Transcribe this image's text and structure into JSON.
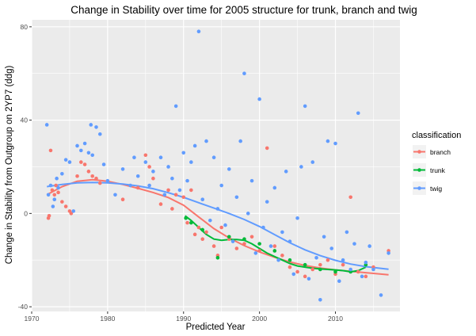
{
  "chart_data": {
    "type": "scatter",
    "title": "Change in Stability over time for 2005 structure for trunk, branch and twig",
    "xlabel": "Predicted Year",
    "ylabel": "Change in Stability from Outgroup on 2YP7 (ddg)",
    "xlim": [
      1970,
      2018.5
    ],
    "ylim": [
      -42,
      83
    ],
    "x_ticks": [
      1970,
      1980,
      1990,
      2000,
      2010
    ],
    "y_ticks": [
      -40,
      0,
      40,
      80
    ],
    "x_tick_labels": [
      "1970",
      "1980",
      "1990",
      "2000",
      "2010"
    ],
    "y_tick_labels": [
      "-40",
      "0",
      "40",
      "80"
    ],
    "grid": true,
    "background": "#ebebeb",
    "legend": {
      "title": "classification",
      "position": "right",
      "entries": [
        "branch",
        "trunk",
        "twig"
      ]
    },
    "series": [
      {
        "name": "branch",
        "color": "#f8766d",
        "points": [
          [
            1972.2,
            -2
          ],
          [
            1972.3,
            -1
          ],
          [
            1972.5,
            27
          ],
          [
            1972.7,
            10
          ],
          [
            1973.0,
            8
          ],
          [
            1973.2,
            12
          ],
          [
            1973.5,
            9
          ],
          [
            1974.0,
            5
          ],
          [
            1974.5,
            3
          ],
          [
            1975.0,
            1
          ],
          [
            1975.2,
            0
          ],
          [
            1976.0,
            16
          ],
          [
            1976.5,
            22
          ],
          [
            1977.0,
            21
          ],
          [
            1977.5,
            18
          ],
          [
            1978.0,
            16
          ],
          [
            1978.5,
            15
          ],
          [
            1979.0,
            13
          ],
          [
            1982.0,
            6
          ],
          [
            1984.0,
            11
          ],
          [
            1985.0,
            25
          ],
          [
            1985.5,
            20
          ],
          [
            1986.0,
            15
          ],
          [
            1987.0,
            4
          ],
          [
            1988.0,
            10
          ],
          [
            1988.5,
            2
          ],
          [
            1989.0,
            8
          ],
          [
            1990.0,
            7
          ],
          [
            1990.5,
            -4
          ],
          [
            1991.0,
            10
          ],
          [
            1991.5,
            -9
          ],
          [
            1992.0,
            -6
          ],
          [
            1992.5,
            -11
          ],
          [
            1993.0,
            -8
          ],
          [
            1994.0,
            -14
          ],
          [
            1994.5,
            -18
          ],
          [
            1995.0,
            -6
          ],
          [
            1996.0,
            -11
          ],
          [
            1997.0,
            -15
          ],
          [
            1998.0,
            -13
          ],
          [
            1999.0,
            -10
          ],
          [
            2000.0,
            -16
          ],
          [
            2001.0,
            28
          ],
          [
            2002.0,
            -14
          ],
          [
            2003.0,
            -18
          ],
          [
            2004.0,
            -23
          ],
          [
            2005.0,
            -25
          ],
          [
            2006.0,
            -27
          ],
          [
            2007.0,
            -24
          ],
          [
            2008.0,
            -22
          ],
          [
            2009.0,
            -20
          ],
          [
            2010.0,
            -26
          ],
          [
            2011.0,
            -22
          ],
          [
            2012.0,
            7
          ],
          [
            2013.0,
            -25
          ],
          [
            2014.0,
            -27
          ],
          [
            2015.0,
            -23
          ],
          [
            2017.0,
            -16
          ]
        ]
      },
      {
        "name": "trunk",
        "color": "#00ba38",
        "points": [
          [
            1990.3,
            -2
          ],
          [
            1991.0,
            -4
          ],
          [
            1992.5,
            -7
          ],
          [
            1994.5,
            -19
          ],
          [
            1996.0,
            -10
          ],
          [
            1998.0,
            -11
          ],
          [
            2000.0,
            -13
          ],
          [
            2002.0,
            -16
          ],
          [
            2004.0,
            -20
          ],
          [
            2006.0,
            -22
          ],
          [
            2008.0,
            -24
          ],
          [
            2010.0,
            -25
          ],
          [
            2012.0,
            -25
          ],
          [
            2014.0,
            -22
          ]
        ]
      },
      {
        "name": "twig",
        "color": "#619cff",
        "points": [
          [
            1972.0,
            38
          ],
          [
            1972.2,
            8
          ],
          [
            1972.5,
            12
          ],
          [
            1972.8,
            3
          ],
          [
            1973.0,
            6
          ],
          [
            1973.3,
            15
          ],
          [
            1973.5,
            11
          ],
          [
            1974.0,
            17
          ],
          [
            1974.5,
            23
          ],
          [
            1975.0,
            22
          ],
          [
            1975.5,
            1
          ],
          [
            1976.0,
            29
          ],
          [
            1976.5,
            27
          ],
          [
            1977.0,
            30
          ],
          [
            1977.5,
            26
          ],
          [
            1977.8,
            38
          ],
          [
            1978.0,
            25
          ],
          [
            1978.5,
            37
          ],
          [
            1979.0,
            34
          ],
          [
            1979.5,
            21
          ],
          [
            1980.0,
            14
          ],
          [
            1981.0,
            8
          ],
          [
            1982.0,
            19
          ],
          [
            1983.0,
            12
          ],
          [
            1983.5,
            24
          ],
          [
            1984.0,
            16
          ],
          [
            1985.0,
            22
          ],
          [
            1985.5,
            12
          ],
          [
            1986.0,
            18
          ],
          [
            1987.0,
            24
          ],
          [
            1987.5,
            8
          ],
          [
            1988.0,
            20
          ],
          [
            1988.5,
            15
          ],
          [
            1989.0,
            46
          ],
          [
            1989.5,
            10
          ],
          [
            1990.0,
            26
          ],
          [
            1990.5,
            14
          ],
          [
            1991.0,
            22
          ],
          [
            1991.5,
            29
          ],
          [
            1992.0,
            78
          ],
          [
            1992.5,
            6
          ],
          [
            1993.0,
            31
          ],
          [
            1993.5,
            -3
          ],
          [
            1994.0,
            24
          ],
          [
            1994.5,
            2
          ],
          [
            1995.0,
            12
          ],
          [
            1995.5,
            -5
          ],
          [
            1996.0,
            19
          ],
          [
            1996.5,
            -12
          ],
          [
            1997.0,
            7
          ],
          [
            1997.5,
            31
          ],
          [
            1998.0,
            60
          ],
          [
            1998.5,
            0
          ],
          [
            1999.0,
            14
          ],
          [
            1999.5,
            -17
          ],
          [
            2000.0,
            49
          ],
          [
            2000.5,
            -6
          ],
          [
            2001.0,
            5
          ],
          [
            2001.5,
            -14
          ],
          [
            2002.0,
            11
          ],
          [
            2002.5,
            -20
          ],
          [
            2003.0,
            -8
          ],
          [
            2003.5,
            18
          ],
          [
            2004.0,
            -12
          ],
          [
            2004.5,
            -26
          ],
          [
            2005.0,
            -2
          ],
          [
            2005.5,
            20
          ],
          [
            2006.0,
            46
          ],
          [
            2006.5,
            -28
          ],
          [
            2007.0,
            22
          ],
          [
            2007.5,
            -19
          ],
          [
            2008.0,
            -37
          ],
          [
            2008.5,
            -10
          ],
          [
            2009.0,
            31
          ],
          [
            2009.5,
            -15
          ],
          [
            2010.0,
            30
          ],
          [
            2010.5,
            -29
          ],
          [
            2011.0,
            -20
          ],
          [
            2011.5,
            -8
          ],
          [
            2012.0,
            -24
          ],
          [
            2012.5,
            -13
          ],
          [
            2013.0,
            43
          ],
          [
            2013.5,
            -27
          ],
          [
            2014.0,
            -21
          ],
          [
            2014.5,
            -14
          ],
          [
            2015.0,
            -24
          ],
          [
            2016.0,
            -35
          ],
          [
            2017.0,
            -17
          ]
        ]
      }
    ],
    "trends": [
      {
        "name": "branch",
        "color": "#f8766d",
        "points": [
          [
            1972,
            8
          ],
          [
            1974,
            11.5
          ],
          [
            1976,
            13.8
          ],
          [
            1978,
            14.5
          ],
          [
            1980,
            13.8
          ],
          [
            1982,
            12.4
          ],
          [
            1984,
            10.8
          ],
          [
            1986,
            9
          ],
          [
            1988,
            6.8
          ],
          [
            1990,
            3.5
          ],
          [
            1992,
            -1.5
          ],
          [
            1994,
            -6.5
          ],
          [
            1996,
            -10.5
          ],
          [
            1998,
            -13.8
          ],
          [
            2000,
            -16.5
          ],
          [
            2002,
            -18.8
          ],
          [
            2004,
            -20.8
          ],
          [
            2006,
            -22.3
          ],
          [
            2008,
            -23.4
          ],
          [
            2010,
            -24.2
          ],
          [
            2012,
            -24.8
          ],
          [
            2014,
            -25.4
          ],
          [
            2017,
            -26.3
          ]
        ]
      },
      {
        "name": "trunk",
        "color": "#00ba38",
        "points": [
          [
            1990.2,
            -1
          ],
          [
            1991,
            -3
          ],
          [
            1992,
            -6
          ],
          [
            1993,
            -9
          ],
          [
            1994,
            -11
          ],
          [
            1995,
            -11.5
          ],
          [
            1996,
            -11.2
          ],
          [
            1997,
            -11.2
          ],
          [
            1998,
            -11.5
          ],
          [
            1999,
            -13
          ],
          [
            2000,
            -15
          ],
          [
            2001,
            -17
          ],
          [
            2002,
            -18.5
          ],
          [
            2003,
            -20
          ],
          [
            2004,
            -21.5
          ],
          [
            2005,
            -22.5
          ],
          [
            2006,
            -23
          ],
          [
            2007,
            -23.5
          ],
          [
            2008,
            -23.8
          ],
          [
            2009,
            -24
          ],
          [
            2010,
            -24.2
          ],
          [
            2011,
            -24.5
          ],
          [
            2012,
            -25
          ],
          [
            2013,
            -24.5
          ],
          [
            2014,
            -23
          ]
        ]
      },
      {
        "name": "twig",
        "color": "#619cff",
        "points": [
          [
            1972,
            11.5
          ],
          [
            1974,
            12.4
          ],
          [
            1976,
            13.1
          ],
          [
            1978,
            13.3
          ],
          [
            1980,
            13.1
          ],
          [
            1982,
            12.6
          ],
          [
            1984,
            11.8
          ],
          [
            1986,
            10.6
          ],
          [
            1988,
            8.9
          ],
          [
            1990,
            6.9
          ],
          [
            1992,
            4.6
          ],
          [
            1994,
            2.3
          ],
          [
            1996,
            0
          ],
          [
            1998,
            -2.6
          ],
          [
            2000,
            -5.6
          ],
          [
            2002,
            -9.1
          ],
          [
            2004,
            -12.6
          ],
          [
            2006,
            -15.6
          ],
          [
            2008,
            -18.1
          ],
          [
            2010,
            -20.1
          ],
          [
            2012,
            -21.7
          ],
          [
            2014,
            -22.8
          ],
          [
            2017,
            -23.9
          ]
        ]
      }
    ]
  }
}
